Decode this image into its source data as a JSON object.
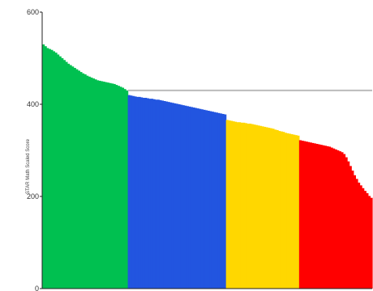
{
  "chart_data": {
    "type": "bar",
    "ylabel": "STAR Math Scaled Score",
    "ylim": [
      0,
      600
    ],
    "yticks": [
      0,
      200,
      400,
      600
    ],
    "ytick_labels": [
      "0",
      "200",
      "400",
      "600"
    ],
    "reference_line": 430,
    "grid": false,
    "colors": {
      "green": "#00c050",
      "blue": "#2255e0",
      "yellow": "#ffd700",
      "red": "#ff0000",
      "reference_line": "#bbbbbb",
      "axis": "#222222"
    },
    "series": [
      {
        "color_key": "green",
        "values": [
          530,
          526,
          522,
          520,
          518,
          515,
          512,
          508,
          504,
          500,
          496,
          492,
          488,
          485,
          482,
          479,
          476,
          473,
          470,
          467,
          465,
          462,
          460,
          458,
          456,
          454,
          452,
          451,
          450,
          449,
          448,
          447,
          446,
          445,
          444,
          442,
          440,
          438,
          436,
          433,
          430
        ]
      },
      {
        "color_key": "blue",
        "values": [
          420,
          419,
          418,
          417,
          416,
          416,
          415,
          414,
          414,
          413,
          412,
          412,
          411,
          410,
          410,
          409,
          408,
          407,
          406,
          405,
          404,
          403,
          402,
          401,
          400,
          399,
          398,
          397,
          396,
          395,
          394,
          393,
          392,
          391,
          390,
          389,
          388,
          387,
          386,
          385,
          384,
          383,
          382,
          381,
          380,
          379,
          378
        ]
      },
      {
        "color_key": "yellow",
        "values": [
          366,
          365,
          364,
          363,
          362,
          361,
          361,
          360,
          360,
          359,
          358,
          358,
          357,
          356,
          355,
          354,
          353,
          352,
          351,
          350,
          349,
          348,
          347,
          345,
          344,
          342,
          341,
          340,
          338,
          337,
          336,
          335,
          334,
          333,
          332
        ]
      },
      {
        "color_key": "red",
        "values": [
          322,
          321,
          320,
          319,
          318,
          317,
          316,
          315,
          314,
          313,
          312,
          311,
          310,
          309,
          308,
          306,
          304,
          302,
          300,
          298,
          296,
          292,
          285,
          276,
          266,
          256,
          246,
          238,
          230,
          224,
          218,
          212,
          207,
          201,
          197
        ]
      }
    ]
  }
}
